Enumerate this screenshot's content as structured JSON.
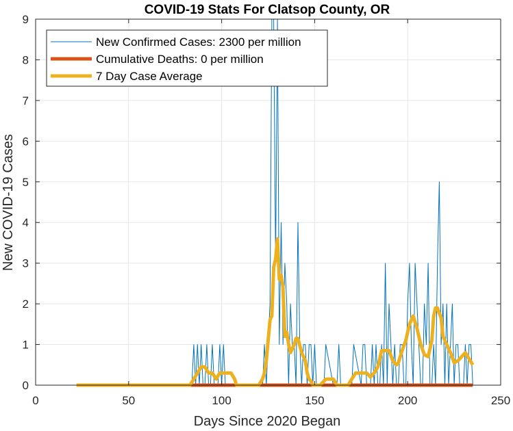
{
  "chart_data": {
    "type": "line",
    "title": "COVID-19 Stats For Clatsop County, OR",
    "xlabel": "Days Since 2020 Began",
    "ylabel": "New COVID-19 Cases",
    "xlim": [
      0,
      250
    ],
    "ylim": [
      0,
      9
    ],
    "xticks": [
      0,
      50,
      100,
      150,
      200,
      250
    ],
    "yticks": [
      0,
      1,
      2,
      3,
      4,
      5,
      6,
      7,
      8,
      9
    ],
    "grid": true,
    "legend_position": "top-left",
    "colors": {
      "new_cases": "#0072BD",
      "deaths": "#D95319",
      "avg": "#EDB120",
      "grid": "#e6e6e6",
      "axes": "#262626"
    },
    "series": [
      {
        "name": "New Confirmed Cases: 2300 per million",
        "style": "thin",
        "x": [
          22,
          84,
          85,
          86,
          87,
          88,
          89,
          90,
          91,
          92,
          93,
          94,
          95,
          96,
          97,
          98,
          99,
          100,
          101,
          102,
          103,
          104,
          105,
          106,
          107,
          108,
          120,
          121,
          122,
          123,
          124,
          125,
          126,
          127,
          128,
          129,
          130,
          131,
          132,
          133,
          134,
          135,
          136,
          137,
          138,
          139,
          140,
          141,
          142,
          143,
          144,
          145,
          146,
          147,
          148,
          149,
          150,
          151,
          155,
          156,
          160,
          161,
          162,
          163,
          164,
          165,
          166,
          170,
          171,
          175,
          176,
          177,
          178,
          179,
          180,
          181,
          182,
          183,
          184,
          185,
          186,
          187,
          188,
          189,
          190,
          191,
          192,
          193,
          194,
          195,
          196,
          197,
          198,
          199,
          200,
          201,
          202,
          203,
          204,
          205,
          206,
          207,
          208,
          209,
          210,
          211,
          212,
          213,
          214,
          215,
          216,
          217,
          218,
          219,
          220,
          221,
          222,
          223,
          224,
          225,
          226,
          227,
          228,
          229,
          230,
          231,
          232,
          233,
          234,
          235
        ],
        "y": [
          0,
          0,
          1,
          0,
          1,
          0,
          1,
          0,
          0,
          1,
          0,
          0,
          1,
          0,
          0,
          0,
          1,
          0,
          1,
          0,
          0,
          0,
          0,
          0,
          0,
          0,
          0,
          0,
          0,
          1,
          0,
          1,
          2,
          9,
          9,
          3,
          9,
          1,
          4,
          1,
          3,
          2,
          0,
          2,
          1,
          1,
          0,
          4,
          1,
          0,
          1,
          1,
          0,
          1,
          1,
          0,
          1,
          0,
          0,
          1,
          0,
          0,
          0,
          1,
          0,
          0,
          0,
          0,
          1,
          0,
          1,
          1,
          0,
          0,
          0,
          1,
          0,
          1,
          0,
          0,
          1,
          0,
          3,
          0,
          2,
          1,
          0,
          1,
          0,
          0,
          1,
          1,
          0,
          0,
          2,
          3,
          1,
          0,
          3,
          2,
          1,
          0,
          0,
          2,
          1,
          3,
          0,
          0,
          1,
          0,
          3,
          5,
          1,
          2,
          0,
          2,
          0,
          1,
          2,
          0,
          1,
          1,
          0,
          0,
          0,
          1,
          0,
          1,
          1,
          0
        ],
        "values": [
          0,
          0,
          1,
          0,
          1,
          0,
          1,
          0,
          0,
          1,
          0,
          0,
          1,
          0,
          0,
          0,
          1,
          0,
          1,
          0,
          0,
          0,
          0,
          0,
          0,
          0,
          0,
          0,
          0,
          1,
          0,
          1,
          2,
          9,
          9,
          3,
          9,
          1,
          4,
          1,
          3,
          2,
          0,
          2,
          1,
          1,
          0,
          4,
          1,
          0,
          1,
          1,
          0,
          1,
          1,
          0,
          1,
          0,
          0,
          1,
          0,
          0,
          0,
          1,
          0,
          0,
          0,
          0,
          1,
          0,
          1,
          1,
          0,
          0,
          0,
          1,
          0,
          1,
          0,
          0,
          1,
          0,
          3,
          0,
          2,
          1,
          0,
          1,
          0,
          0,
          1,
          1,
          0,
          0,
          2,
          3,
          1,
          0,
          3,
          2,
          1,
          0,
          0,
          2,
          1,
          3,
          0,
          0,
          1,
          0,
          3,
          5,
          1,
          2,
          0,
          2,
          0,
          1,
          2,
          0,
          1,
          1,
          0,
          0,
          0,
          1,
          0,
          1,
          1,
          0
        ]
      },
      {
        "name": "Cumulative Deaths: 0 per million",
        "style": "thick",
        "x": [
          22,
          235
        ],
        "y": [
          0,
          0
        ],
        "values": [
          0,
          0
        ]
      },
      {
        "name": "7 Day Case Average",
        "style": "thick",
        "x": [
          22,
          83,
          85,
          87,
          89,
          91,
          93,
          95,
          97,
          99,
          101,
          103,
          105,
          107,
          108,
          110,
          120,
          122,
          123,
          124,
          126,
          127,
          128,
          129,
          130,
          131,
          132,
          133,
          134,
          135,
          136,
          137,
          138,
          139,
          140,
          141,
          143,
          145,
          146,
          147,
          148,
          149,
          150,
          151,
          153,
          156,
          160,
          162,
          164,
          166,
          167,
          168,
          170,
          172,
          174,
          176,
          178,
          180,
          182,
          184,
          186,
          188,
          190,
          192,
          194,
          195,
          197,
          199,
          201,
          203,
          205,
          207,
          209,
          211,
          213,
          214,
          215,
          216,
          218,
          219,
          221,
          223,
          225,
          227,
          229,
          231,
          233,
          235
        ],
        "y": [
          0,
          0,
          0.15,
          0.3,
          0.45,
          0.45,
          0.3,
          0.3,
          0.15,
          0.3,
          0.3,
          0.3,
          0.3,
          0.15,
          0,
          0,
          0,
          0.15,
          0.3,
          0.6,
          1.6,
          1.7,
          2.9,
          3.1,
          3.6,
          2.6,
          2.7,
          2.4,
          1.2,
          1.3,
          1.0,
          0.8,
          0.9,
          1.0,
          1.15,
          1.15,
          0.8,
          0.6,
          0.3,
          0.15,
          0.1,
          0,
          0,
          0,
          0,
          0.15,
          0.15,
          0,
          0,
          0,
          0,
          0,
          0.15,
          0.3,
          0.3,
          0.3,
          0.3,
          0.2,
          0.3,
          0.45,
          0.85,
          0.85,
          0.85,
          0.6,
          0.5,
          0.55,
          0.85,
          1.1,
          1.5,
          1.7,
          1.4,
          1.0,
          0.75,
          0.7,
          1.1,
          1.7,
          1.9,
          1.9,
          1.65,
          1.2,
          1.0,
          0.8,
          0.55,
          0.6,
          0.7,
          0.8,
          0.65,
          0.5
        ],
        "values": [
          0,
          0,
          0.15,
          0.3,
          0.45,
          0.45,
          0.3,
          0.3,
          0.15,
          0.3,
          0.3,
          0.3,
          0.3,
          0.15,
          0,
          0,
          0,
          0.15,
          0.3,
          0.6,
          1.6,
          1.7,
          2.9,
          3.1,
          3.6,
          2.6,
          2.7,
          2.4,
          1.2,
          1.3,
          1.0,
          0.8,
          0.9,
          1.0,
          1.15,
          1.15,
          0.8,
          0.6,
          0.3,
          0.15,
          0.1,
          0,
          0,
          0,
          0,
          0.15,
          0.15,
          0,
          0,
          0,
          0,
          0,
          0.15,
          0.3,
          0.3,
          0.3,
          0.3,
          0.2,
          0.3,
          0.45,
          0.85,
          0.85,
          0.85,
          0.6,
          0.5,
          0.55,
          0.85,
          1.1,
          1.5,
          1.7,
          1.4,
          1.0,
          0.75,
          0.7,
          1.1,
          1.7,
          1.9,
          1.9,
          1.65,
          1.2,
          1.0,
          0.8,
          0.55,
          0.6,
          0.7,
          0.8,
          0.65,
          0.5
        ]
      }
    ]
  }
}
